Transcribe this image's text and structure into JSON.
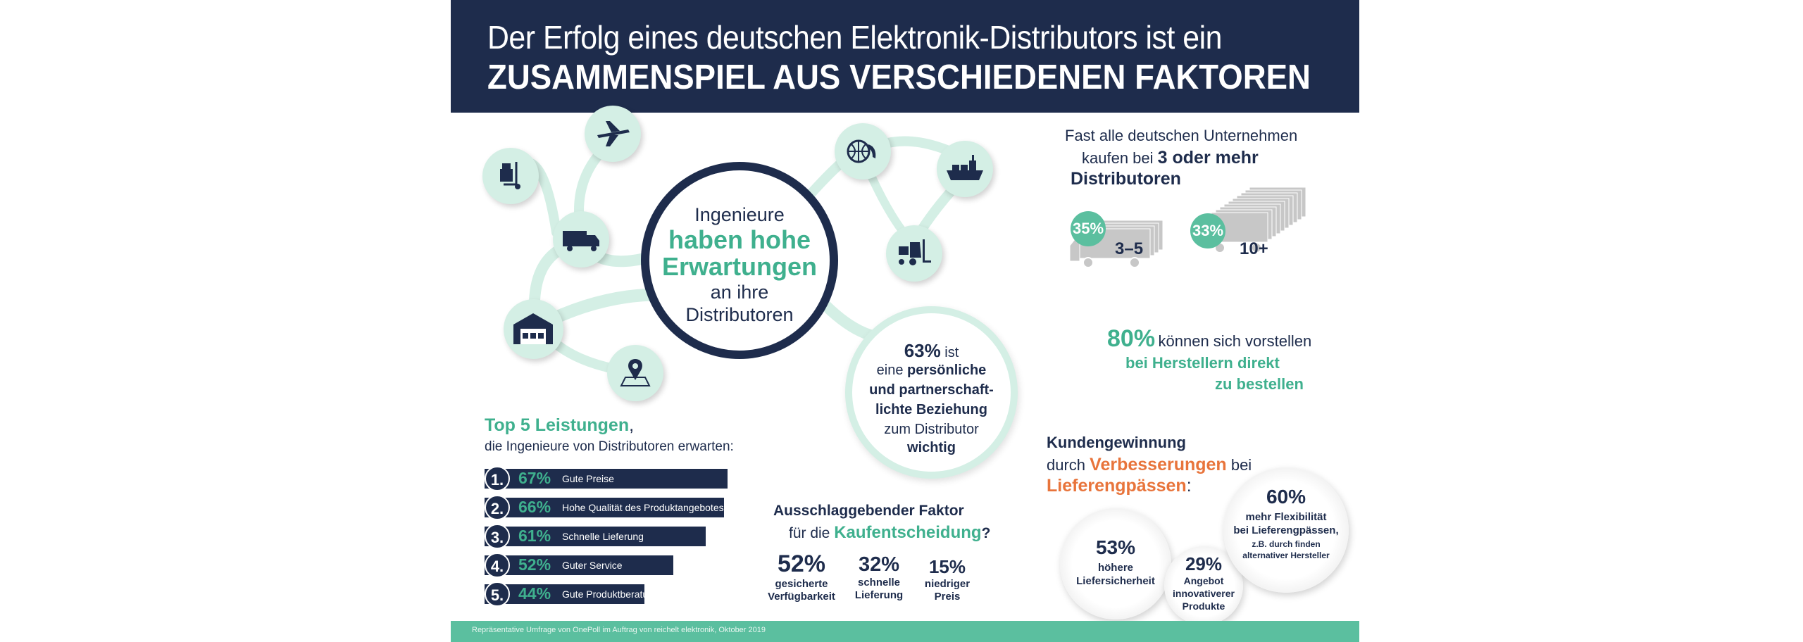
{
  "header": {
    "line1": "Der Erfolg eines deutschen Elektronik-Distributors ist ein",
    "line2": "ZUSAMMENSPIEL AUS VERSCHIEDENEN FAKTOREN"
  },
  "center": {
    "line1": "Ingenieure",
    "line2": "haben hohe",
    "line3": "Erwartungen",
    "line4": "an ihre",
    "line5": "Distributoren"
  },
  "icons": [
    "hand-truck-icon",
    "airplane-icon",
    "delivery-truck-icon",
    "warehouse-icon",
    "location-pin-icon",
    "globe-phone-icon",
    "cargo-ship-icon",
    "forklift-icon"
  ],
  "relationship": {
    "pct": "63%",
    "l1": "ist",
    "l2a": "eine",
    "l2b": "persönliche",
    "l3": "und partnerschaft-",
    "l4": "lichte Beziehung",
    "l5": "zum Distributor",
    "l6": "wichtig"
  },
  "distributors": {
    "line1": "Fast alle deutschen Unternehmen",
    "line2a": "kaufen bei",
    "line2b": "3 oder mehr",
    "line3": "Distributoren",
    "groups": [
      {
        "pct": "35%",
        "label": "3–5"
      },
      {
        "pct": "33%",
        "label": "10+"
      }
    ]
  },
  "direct": {
    "pct": "80%",
    "l1": "können sich vorstellen",
    "l2": "bei Herstellern direkt",
    "l3": "zu bestellen"
  },
  "top5": {
    "title": "Top 5 Leistungen",
    "comma": ",",
    "subtitle": "die Ingenieure von Distributoren erwarten:",
    "items": [
      {
        "rank": "1.",
        "pct": "67%",
        "label": "Gute Preise",
        "value": 67
      },
      {
        "rank": "2.",
        "pct": "66%",
        "label": "Hohe Qualität des Produktangebotes",
        "value": 66
      },
      {
        "rank": "3.",
        "pct": "61%",
        "label": "Schnelle Lieferung",
        "value": 61
      },
      {
        "rank": "4.",
        "pct": "52%",
        "label": "Guter Service",
        "value": 52
      },
      {
        "rank": "5.",
        "pct": "44%",
        "label": "Gute Produktberatung",
        "value": 44
      }
    ]
  },
  "factor": {
    "title1": "Ausschlaggebender Faktor",
    "title2a": "für die",
    "title2b": "Kaufentscheidung",
    "title2c": "?",
    "items": [
      {
        "pct": "52%",
        "l1": "gesicherte",
        "l2": "Verfügbarkeit"
      },
      {
        "pct": "32%",
        "l1": "schnelle",
        "l2": "Lieferung"
      },
      {
        "pct": "15%",
        "l1": "niedriger",
        "l2": "Preis"
      }
    ]
  },
  "acquisition": {
    "l1": "Kundengewinnung",
    "l2a": "durch",
    "l2b": "Verbesserungen",
    "l2c": "bei",
    "l3a": "Lieferengpässen",
    "l3b": ":",
    "b53": {
      "pct": "53%",
      "l1": "höhere",
      "l2": "Liefersicherheit"
    },
    "b29": {
      "pct": "29%",
      "l1": "Angebot",
      "l2": "innovativerer",
      "l3": "Produkte"
    },
    "b60": {
      "pct": "60%",
      "l1": "mehr Flexibilität",
      "l2": "bei Lieferengpässen,",
      "l3": "z.B. durch finden",
      "l4": "alternativer Hersteller"
    }
  },
  "footer": {
    "text": "Repräsentative Umfrage von OnePoll im Auftrag von reichelt elektronik, Oktober 2019"
  },
  "colors": {
    "navy": "#1e2c4c",
    "teal": "#3fb08e",
    "mint": "#d4efe5",
    "orange": "#e8743b"
  }
}
